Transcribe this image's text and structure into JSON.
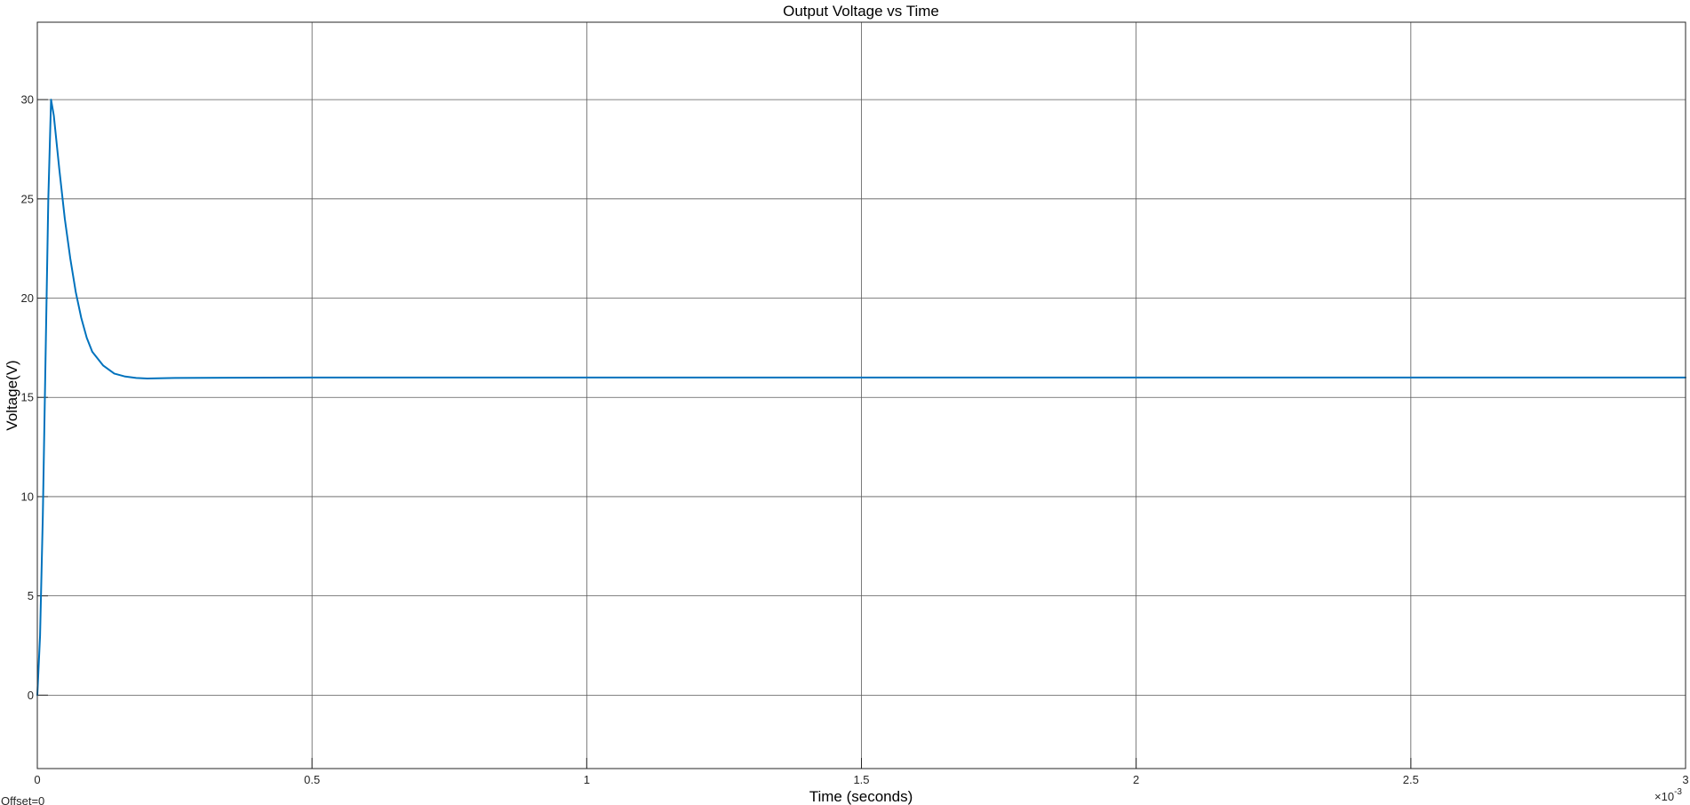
{
  "chart_data": {
    "type": "line",
    "title": "Output Voltage vs Time",
    "xlabel": "Time (seconds)",
    "ylabel": "Voltage(V)",
    "x_multiplier_label": "×10",
    "x_multiplier_exponent": "-3",
    "x_scale": 0.001,
    "offset_label": "Offset=0",
    "xlim": [
      0,
      3
    ],
    "ylim": [
      -3.7,
      33.9
    ],
    "x_ticks": [
      0,
      0.5,
      1,
      1.5,
      2,
      2.5,
      3
    ],
    "y_ticks": [
      0,
      5,
      10,
      15,
      20,
      25,
      30
    ],
    "grid": true,
    "legend": "none",
    "series": [
      {
        "color": "#0072BD",
        "x": [
          0,
          0.005,
          0.01,
          0.015,
          0.02,
          0.025,
          0.03,
          0.04,
          0.05,
          0.06,
          0.07,
          0.08,
          0.09,
          0.1,
          0.12,
          0.14,
          0.16,
          0.18,
          0.2,
          0.25,
          0.5,
          1.0,
          1.5,
          2.0,
          2.5,
          3.0
        ],
        "y": [
          0,
          3,
          9,
          17,
          25,
          30,
          29.2,
          26.5,
          24.0,
          22.0,
          20.3,
          19.0,
          18.0,
          17.3,
          16.6,
          16.2,
          16.05,
          15.98,
          15.95,
          15.98,
          16.0,
          16.0,
          16.0,
          16.0,
          16.0,
          16.0
        ]
      }
    ]
  }
}
